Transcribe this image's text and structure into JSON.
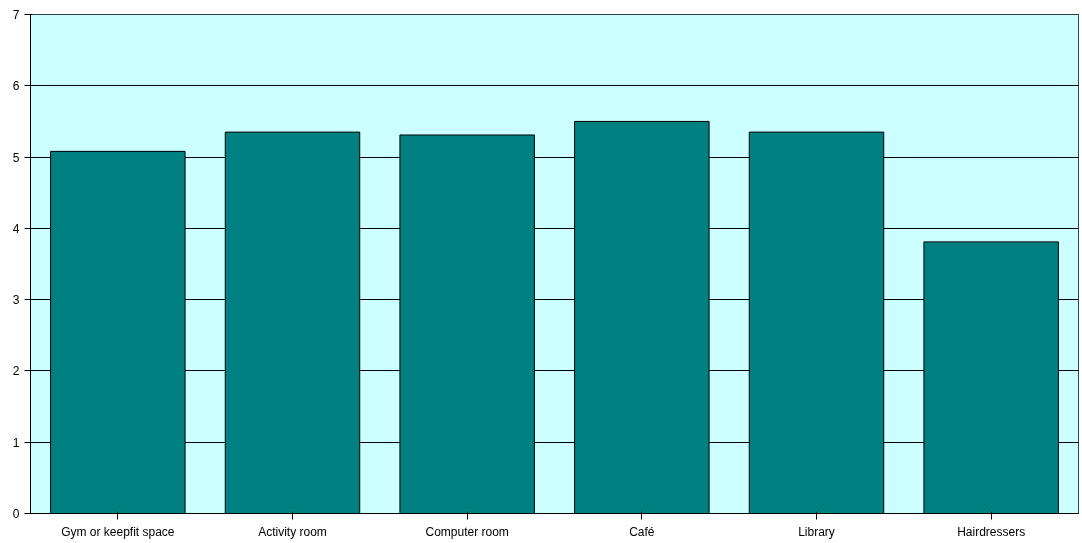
{
  "chart_data": {
    "type": "bar",
    "categories": [
      "Gym or keepfit space",
      "Activity room",
      "Computer room",
      "Café",
      "Library",
      "Hairdressers"
    ],
    "values": [
      5.08,
      5.35,
      5.31,
      5.5,
      5.35,
      3.81
    ],
    "color": "#008080",
    "ylim": [
      0,
      7
    ],
    "yticks": [
      0,
      1,
      2,
      3,
      4,
      5,
      6,
      7
    ],
    "grid": "y",
    "bands": [
      {
        "axis": "y",
        "from": 0,
        "to": 7,
        "color": "#ccffff"
      }
    ]
  }
}
